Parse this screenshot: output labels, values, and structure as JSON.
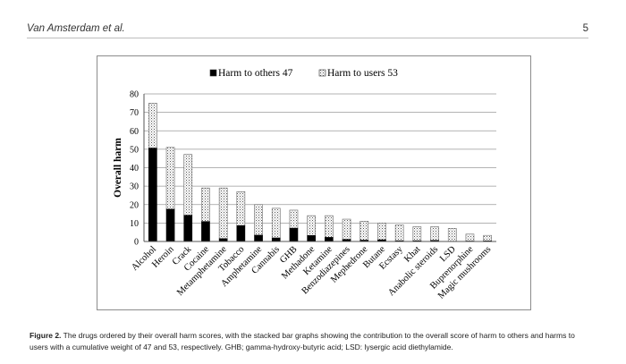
{
  "header": {
    "author": "Van Amsterdam et al.",
    "page_number": "5"
  },
  "figure": {
    "caption_label": "Figure 2.",
    "caption_text": " The drugs ordered by their overall harm scores, with the stacked bar graphs showing the contribution to the overall score of harm to others and harms to users with a cumulative weight of 47 and 53, respectively. GHB; gamma-hydroxy-butyric acid; LSD: lysergic acid diethylamide."
  },
  "chart_data": {
    "type": "bar",
    "stacked": true,
    "ylabel": "Overall harm",
    "ylim": [
      0,
      80
    ],
    "yticks": [
      0,
      10,
      20,
      30,
      40,
      50,
      60,
      70,
      80
    ],
    "grid": true,
    "legend_position": "top",
    "categories": [
      "Alcohol",
      "Heroin",
      "Crack",
      "Cocaine",
      "Metamphetamine",
      "Tobacco",
      "Amphetamine",
      "Cannabis",
      "GHB",
      "Methadone",
      "Ketamine",
      "Benzodiazepines",
      "Mephedrone",
      "Butane",
      "Ecstasy",
      "Khat",
      "Anabolic steroids",
      "LSD",
      "Buprenorphine",
      "Magic mushrooms"
    ],
    "series": [
      {
        "name": "Harm to others 47",
        "color": "#000000",
        "values": [
          50.6,
          17.5,
          14.2,
          10.8,
          1.5,
          8.6,
          3.4,
          1.9,
          7.2,
          3.2,
          2.2,
          1.1,
          0.7,
          0.9,
          0.4,
          0.4,
          0.6,
          0.1,
          0.2,
          0.3
        ]
      },
      {
        "name": "Harm to users 53",
        "color": "#d8d8d8",
        "pattern": "dotted",
        "values": [
          24.4,
          33.5,
          33.0,
          18.2,
          27.5,
          18.4,
          16.6,
          16.1,
          9.8,
          10.8,
          11.8,
          11.0,
          10.3,
          9.1,
          8.6,
          7.6,
          7.4,
          7.0,
          3.8,
          3.0
        ]
      }
    ]
  }
}
